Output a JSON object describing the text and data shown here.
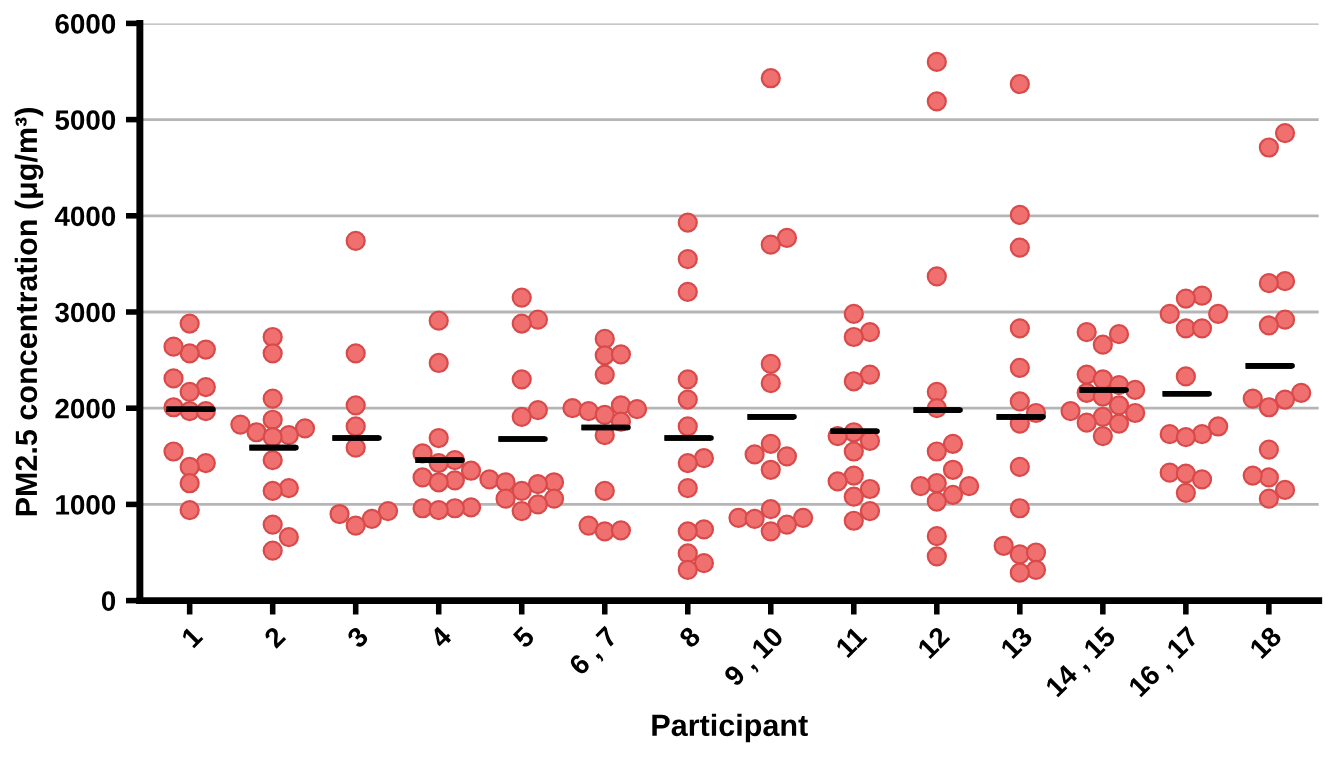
{
  "chart_data": {
    "type": "scatter",
    "xlabel": "Participant",
    "ylabel": "PM2.5 concentration (μg/m³)",
    "categories": [
      "1",
      "2",
      "3",
      "4",
      "5",
      "6 , 7",
      "8",
      "9 , 10",
      "11",
      "12",
      "13",
      "14 , 15",
      "16 , 17",
      "18"
    ],
    "ylim": [
      0,
      6000
    ],
    "yticks": [
      0,
      1000,
      2000,
      3000,
      4000,
      5000,
      6000
    ],
    "grid": "y",
    "legend": false,
    "series": [
      {
        "marker": "circle",
        "color": "#f07070",
        "x": [
          "1",
          "1",
          "1",
          "1",
          "1",
          "1",
          "1",
          "1",
          "1",
          "1",
          "1",
          "1",
          "1",
          "1",
          "1",
          "2",
          "2",
          "2",
          "2",
          "2",
          "2",
          "2",
          "2",
          "2",
          "2",
          "2",
          "2",
          "2",
          "2",
          "2",
          "3",
          "3",
          "3",
          "3",
          "3",
          "3",
          "3",
          "3",
          "3",
          "4",
          "4",
          "4",
          "4",
          "4",
          "4",
          "4",
          "4",
          "4",
          "4",
          "4",
          "4",
          "4",
          "4",
          "5",
          "5",
          "5",
          "5",
          "5",
          "5",
          "5",
          "5",
          "5",
          "5",
          "5",
          "5",
          "5",
          "5",
          "5",
          "6 , 7",
          "6 , 7",
          "6 , 7",
          "6 , 7",
          "6 , 7",
          "6 , 7",
          "6 , 7",
          "6 , 7",
          "6 , 7",
          "6 , 7",
          "6 , 7",
          "6 , 7",
          "6 , 7",
          "6 , 7",
          "6 , 7",
          "8",
          "8",
          "8",
          "8",
          "8",
          "8",
          "8",
          "8",
          "8",
          "8",
          "8",
          "8",
          "8",
          "8",
          "9 , 10",
          "9 , 10",
          "9 , 10",
          "9 , 10",
          "9 , 10",
          "9 , 10",
          "9 , 10",
          "9 , 10",
          "9 , 10",
          "9 , 10",
          "9 , 10",
          "9 , 10",
          "9 , 10",
          "9 , 10",
          "9 , 10",
          "11",
          "11",
          "11",
          "11",
          "11",
          "11",
          "11",
          "11",
          "11",
          "11",
          "11",
          "11",
          "11",
          "11",
          "11",
          "12",
          "12",
          "12",
          "12",
          "12",
          "12",
          "12",
          "12",
          "12",
          "12",
          "12",
          "12",
          "12",
          "12",
          "12",
          "13",
          "13",
          "13",
          "13",
          "13",
          "13",
          "13",
          "13",
          "13",
          "13",
          "13",
          "13",
          "13",
          "13",
          "13",
          "14 , 15",
          "14 , 15",
          "14 , 15",
          "14 , 15",
          "14 , 15",
          "14 , 15",
          "14 , 15",
          "14 , 15",
          "14 , 15",
          "14 , 15",
          "14 , 15",
          "14 , 15",
          "14 , 15",
          "14 , 15",
          "14 , 15",
          "14 , 15",
          "16 , 17",
          "16 , 17",
          "16 , 17",
          "16 , 17",
          "16 , 17",
          "16 , 17",
          "16 , 17",
          "16 , 17",
          "16 , 17",
          "16 , 17",
          "16 , 17",
          "16 , 17",
          "16 , 17",
          "16 , 17",
          "16 , 17",
          "18",
          "18",
          "18",
          "18",
          "18",
          "18",
          "18",
          "18",
          "18",
          "18",
          "18",
          "18",
          "18",
          "18",
          "18"
        ],
        "values": [
          2880,
          2610,
          2570,
          2640,
          2310,
          2220,
          2170,
          2010,
          1970,
          1970,
          1550,
          1430,
          1390,
          1220,
          940,
          2740,
          2570,
          2100,
          1880,
          1830,
          1790,
          1750,
          1720,
          1700,
          1460,
          1170,
          1140,
          790,
          660,
          520,
          3740,
          2570,
          2030,
          1810,
          1590,
          930,
          850,
          900,
          780,
          2910,
          2470,
          1690,
          1530,
          1460,
          1430,
          1350,
          1280,
          1250,
          1230,
          970,
          960,
          960,
          940,
          3150,
          2920,
          2880,
          2300,
          1980,
          1910,
          1260,
          1230,
          1230,
          1210,
          1140,
          1060,
          1060,
          1000,
          930,
          2720,
          2550,
          2560,
          2350,
          2030,
          2000,
          1990,
          1970,
          1930,
          1860,
          1720,
          1140,
          780,
          720,
          730,
          3930,
          3550,
          3210,
          2300,
          2090,
          1810,
          1480,
          1430,
          1170,
          740,
          720,
          490,
          390,
          320,
          5430,
          3770,
          3700,
          2460,
          2260,
          1630,
          1520,
          1500,
          1360,
          950,
          860,
          860,
          850,
          790,
          720,
          2980,
          2790,
          2740,
          2350,
          2280,
          1750,
          1710,
          1660,
          1550,
          1300,
          1240,
          1160,
          1080,
          930,
          830,
          5600,
          5190,
          3370,
          2170,
          2000,
          1630,
          1550,
          1360,
          1220,
          1190,
          1190,
          1100,
          1030,
          670,
          460,
          5370,
          4010,
          3670,
          2830,
          2420,
          2070,
          1950,
          1840,
          1390,
          960,
          570,
          480,
          500,
          320,
          290,
          2790,
          2770,
          2660,
          2350,
          2300,
          2240,
          2190,
          2160,
          2120,
          2030,
          1970,
          1950,
          1910,
          1840,
          1850,
          1710,
          3170,
          3140,
          2980,
          2980,
          2830,
          2830,
          2330,
          1810,
          1730,
          1730,
          1700,
          1330,
          1320,
          1260,
          1120,
          4860,
          4710,
          3320,
          3300,
          2920,
          2860,
          2160,
          2100,
          2090,
          2010,
          1570,
          1280,
          1300,
          1150,
          1060
        ]
      },
      {
        "type": "box",
        "color": "#000000",
        "boxes": [
          {
            "low": 1990,
            "q1": 1990,
            "median": 1990,
            "q3": 1990,
            "high": 1990
          },
          {
            "low": 1590,
            "q1": 1590,
            "median": 1590,
            "q3": 1590,
            "high": 1590
          },
          {
            "low": 1690,
            "q1": 1690,
            "median": 1690,
            "q3": 1690,
            "high": 1690
          },
          {
            "low": 1460,
            "q1": 1460,
            "median": 1460,
            "q3": 1460,
            "high": 1460
          },
          {
            "low": 1680,
            "q1": 1680,
            "median": 1680,
            "q3": 1680,
            "high": 1680
          },
          {
            "low": 1800,
            "q1": 1800,
            "median": 1800,
            "q3": 1800,
            "high": 1800
          },
          {
            "low": 1690,
            "q1": 1690,
            "median": 1690,
            "q3": 1690,
            "high": 1690
          },
          {
            "low": 1910,
            "q1": 1910,
            "median": 1910,
            "q3": 1910,
            "high": 1910
          },
          {
            "low": 1760,
            "q1": 1760,
            "median": 1760,
            "q3": 1760,
            "high": 1760
          },
          {
            "low": 1980,
            "q1": 1980,
            "median": 1980,
            "q3": 1980,
            "high": 1980
          },
          {
            "low": 1910,
            "q1": 1910,
            "median": 1910,
            "q3": 1910,
            "high": 1910
          },
          {
            "low": 2190,
            "q1": 2190,
            "median": 2190,
            "q3": 2190,
            "high": 2190
          },
          {
            "low": 2150,
            "q1": 2150,
            "median": 2150,
            "q3": 2150,
            "high": 2150
          },
          {
            "low": 2440,
            "q1": 2440,
            "median": 2440,
            "q3": 2440,
            "high": 2440
          }
        ]
      }
    ]
  }
}
